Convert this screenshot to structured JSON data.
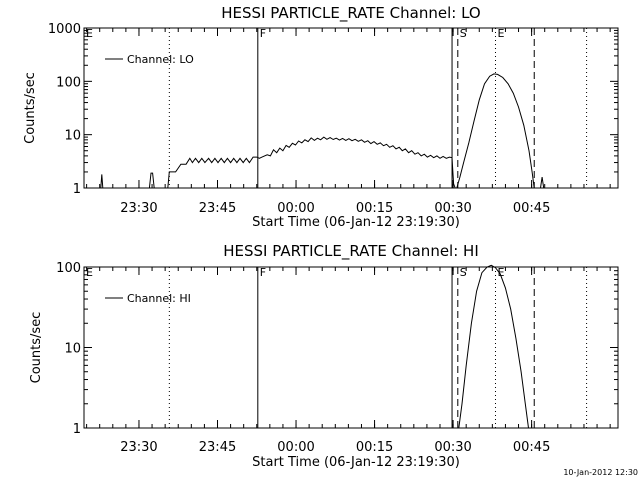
{
  "chart_data": [
    {
      "type": "line",
      "title": "HESSI PARTICLE_RATE Channel: LO",
      "xlabel": "Start Time (06-Jan-12 23:19:30)",
      "ylabel": "Counts/sec",
      "yscale": "log",
      "ylim": [
        1,
        1000
      ],
      "xlim": [
        0,
        102
      ],
      "x_unit": "minutes",
      "x_ticks": [
        {
          "t": 10.5,
          "label": "23:30"
        },
        {
          "t": 25.5,
          "label": "23:45"
        },
        {
          "t": 40.5,
          "label": "00:00"
        },
        {
          "t": 55.5,
          "label": "00:15"
        },
        {
          "t": 70.5,
          "label": "00:30"
        },
        {
          "t": 85.5,
          "label": "00:45"
        }
      ],
      "y_ticks": [
        {
          "v": 1,
          "label": "1"
        },
        {
          "v": 10,
          "label": "10"
        },
        {
          "v": 100,
          "label": "100"
        },
        {
          "v": 1000,
          "label": "1000"
        }
      ],
      "markers": [
        {
          "t": 0,
          "label": "E",
          "style": "solid"
        },
        {
          "t": 16.3,
          "label": "",
          "style": "dotted"
        },
        {
          "t": 33.2,
          "label": "F",
          "style": "solid"
        },
        {
          "t": 70.3,
          "label": "",
          "style": "solid"
        },
        {
          "t": 71.4,
          "label": "S",
          "style": "dashed"
        },
        {
          "t": 78.6,
          "label": "E",
          "style": "dotted"
        },
        {
          "t": 86.0,
          "label": "",
          "style": "dashed"
        },
        {
          "t": 96.0,
          "label": "",
          "style": "dotted"
        }
      ],
      "legend": {
        "label": "Channel: LO",
        "position": "top-left"
      },
      "series": [
        {
          "name": "Channel: LO",
          "segments": [
            [
              [
                3.2,
                1
              ],
              [
                3.4,
                1.8
              ],
              [
                3.6,
                1
              ]
            ],
            [
              [
                12.5,
                1
              ],
              [
                12.8,
                1.9
              ],
              [
                13.1,
                1.9
              ],
              [
                13.4,
                1
              ]
            ],
            [
              [
                16.0,
                1
              ],
              [
                16.3,
                2
              ],
              [
                17.5,
                2
              ],
              [
                18.5,
                2.8
              ],
              [
                19.5,
                2.8
              ],
              [
                20.2,
                3.6
              ],
              [
                20.7,
                3
              ],
              [
                21.3,
                3.6
              ],
              [
                21.9,
                3
              ],
              [
                22.5,
                3.6
              ],
              [
                23.1,
                3
              ],
              [
                23.8,
                3.6
              ],
              [
                24.4,
                3
              ],
              [
                25.0,
                3.6
              ],
              [
                25.6,
                3
              ],
              [
                26.2,
                3.6
              ],
              [
                26.8,
                3
              ],
              [
                27.4,
                3.6
              ],
              [
                28.0,
                3
              ],
              [
                28.6,
                3.6
              ],
              [
                29.2,
                3
              ],
              [
                29.8,
                3.6
              ],
              [
                30.4,
                3
              ],
              [
                31.0,
                3.6
              ],
              [
                31.6,
                3
              ],
              [
                32.3,
                3.8
              ],
              [
                33.0,
                3.8
              ],
              [
                33.5,
                3.6
              ],
              [
                34.0,
                3.8
              ],
              [
                35.0,
                4.2
              ],
              [
                35.6,
                4.0
              ],
              [
                36.2,
                5.2
              ],
              [
                36.8,
                4.6
              ],
              [
                37.4,
                5.6
              ],
              [
                38.0,
                5.0
              ],
              [
                38.6,
                6.3
              ],
              [
                39.2,
                5.8
              ],
              [
                39.8,
                6.9
              ],
              [
                40.4,
                6.4
              ],
              [
                41.0,
                7.6
              ],
              [
                41.6,
                7.0
              ],
              [
                42.2,
                8.0
              ],
              [
                42.8,
                7.4
              ],
              [
                43.4,
                8.7
              ],
              [
                44.0,
                7.8
              ],
              [
                44.6,
                8.6
              ],
              [
                45.2,
                8.0
              ],
              [
                45.8,
                9.0
              ],
              [
                46.4,
                8.2
              ],
              [
                47.0,
                8.8
              ],
              [
                47.6,
                8.1
              ],
              [
                48.2,
                8.6
              ],
              [
                48.8,
                7.9
              ],
              [
                49.4,
                8.5
              ],
              [
                50.0,
                7.8
              ],
              [
                50.6,
                8.4
              ],
              [
                51.2,
                7.7
              ],
              [
                51.8,
                8.2
              ],
              [
                52.4,
                7.5
              ],
              [
                53.0,
                8.0
              ],
              [
                53.6,
                7.2
              ],
              [
                54.2,
                7.7
              ],
              [
                54.8,
                6.8
              ],
              [
                55.4,
                7.4
              ],
              [
                56.0,
                6.6
              ],
              [
                56.6,
                7.0
              ],
              [
                57.2,
                6.2
              ],
              [
                57.8,
                6.6
              ],
              [
                58.4,
                5.8
              ],
              [
                59.0,
                6.2
              ],
              [
                59.6,
                5.4
              ],
              [
                60.2,
                5.8
              ],
              [
                60.8,
                5.0
              ],
              [
                61.4,
                5.4
              ],
              [
                62.0,
                4.6
              ],
              [
                62.6,
                5.0
              ],
              [
                63.2,
                4.3
              ],
              [
                63.8,
                4.6
              ],
              [
                64.4,
                4.0
              ],
              [
                65.0,
                4.3
              ],
              [
                65.6,
                3.8
              ],
              [
                66.2,
                4.1
              ],
              [
                66.8,
                3.7
              ],
              [
                67.4,
                4.0
              ],
              [
                68.0,
                3.6
              ],
              [
                68.6,
                3.9
              ],
              [
                69.2,
                3.6
              ],
              [
                69.8,
                3.8
              ],
              [
                70.3,
                3.7
              ],
              [
                70.6,
                1.2
              ],
              [
                70.9,
                1
              ]
            ],
            [
              [
                71.2,
                1
              ],
              [
                71.8,
                1.6
              ],
              [
                72.5,
                3
              ],
              [
                73.5,
                7
              ],
              [
                74.5,
                18
              ],
              [
                75.5,
                45
              ],
              [
                76.5,
                90
              ],
              [
                77.5,
                125
              ],
              [
                78.3,
                138
              ],
              [
                79.0,
                135
              ],
              [
                80.0,
                118
              ],
              [
                81.0,
                90
              ],
              [
                82.0,
                60
              ],
              [
                83.0,
                33
              ],
              [
                84.0,
                15
              ],
              [
                85.0,
                5
              ],
              [
                85.6,
                2
              ],
              [
                86.0,
                1
              ]
            ],
            [
              [
                87.2,
                1
              ],
              [
                87.5,
                1.6
              ],
              [
                87.8,
                1
              ]
            ]
          ]
        }
      ]
    },
    {
      "type": "line",
      "title": "HESSI PARTICLE_RATE Channel: HI",
      "xlabel": "Start Time (06-Jan-12 23:19:30)",
      "ylabel": "Counts/sec",
      "yscale": "log",
      "ylim": [
        1,
        100
      ],
      "xlim": [
        0,
        102
      ],
      "x_unit": "minutes",
      "x_ticks": [
        {
          "t": 10.5,
          "label": "23:30"
        },
        {
          "t": 25.5,
          "label": "23:45"
        },
        {
          "t": 40.5,
          "label": "00:00"
        },
        {
          "t": 55.5,
          "label": "00:15"
        },
        {
          "t": 70.5,
          "label": "00:30"
        },
        {
          "t": 85.5,
          "label": "00:45"
        }
      ],
      "y_ticks": [
        {
          "v": 1,
          "label": "1"
        },
        {
          "v": 10,
          "label": "10"
        },
        {
          "v": 100,
          "label": "100"
        }
      ],
      "markers": [
        {
          "t": 0,
          "label": "E",
          "style": "solid"
        },
        {
          "t": 16.3,
          "label": "",
          "style": "dotted"
        },
        {
          "t": 33.2,
          "label": "F",
          "style": "solid"
        },
        {
          "t": 70.3,
          "label": "",
          "style": "solid"
        },
        {
          "t": 71.4,
          "label": "S",
          "style": "dashed"
        },
        {
          "t": 78.6,
          "label": "E",
          "style": "dotted"
        },
        {
          "t": 86.0,
          "label": "",
          "style": "dashed"
        },
        {
          "t": 96.0,
          "label": "",
          "style": "dotted"
        }
      ],
      "legend": {
        "label": "Channel: HI",
        "position": "top-left"
      },
      "series": [
        {
          "name": "Channel: HI",
          "segments": [
            [
              [
                71.6,
                1
              ],
              [
                72.2,
                2
              ],
              [
                73.0,
                6
              ],
              [
                74.0,
                20
              ],
              [
                75.0,
                50
              ],
              [
                76.0,
                85
              ],
              [
                77.0,
                100
              ],
              [
                77.8,
                105
              ],
              [
                78.6,
                98
              ],
              [
                79.5,
                82
              ],
              [
                80.5,
                55
              ],
              [
                81.5,
                30
              ],
              [
                82.5,
                13
              ],
              [
                83.5,
                5
              ],
              [
                84.3,
                2
              ],
              [
                84.9,
                1
              ]
            ]
          ]
        }
      ]
    }
  ],
  "footer": {
    "timestamp": "10-Jan-2012 12:30"
  }
}
